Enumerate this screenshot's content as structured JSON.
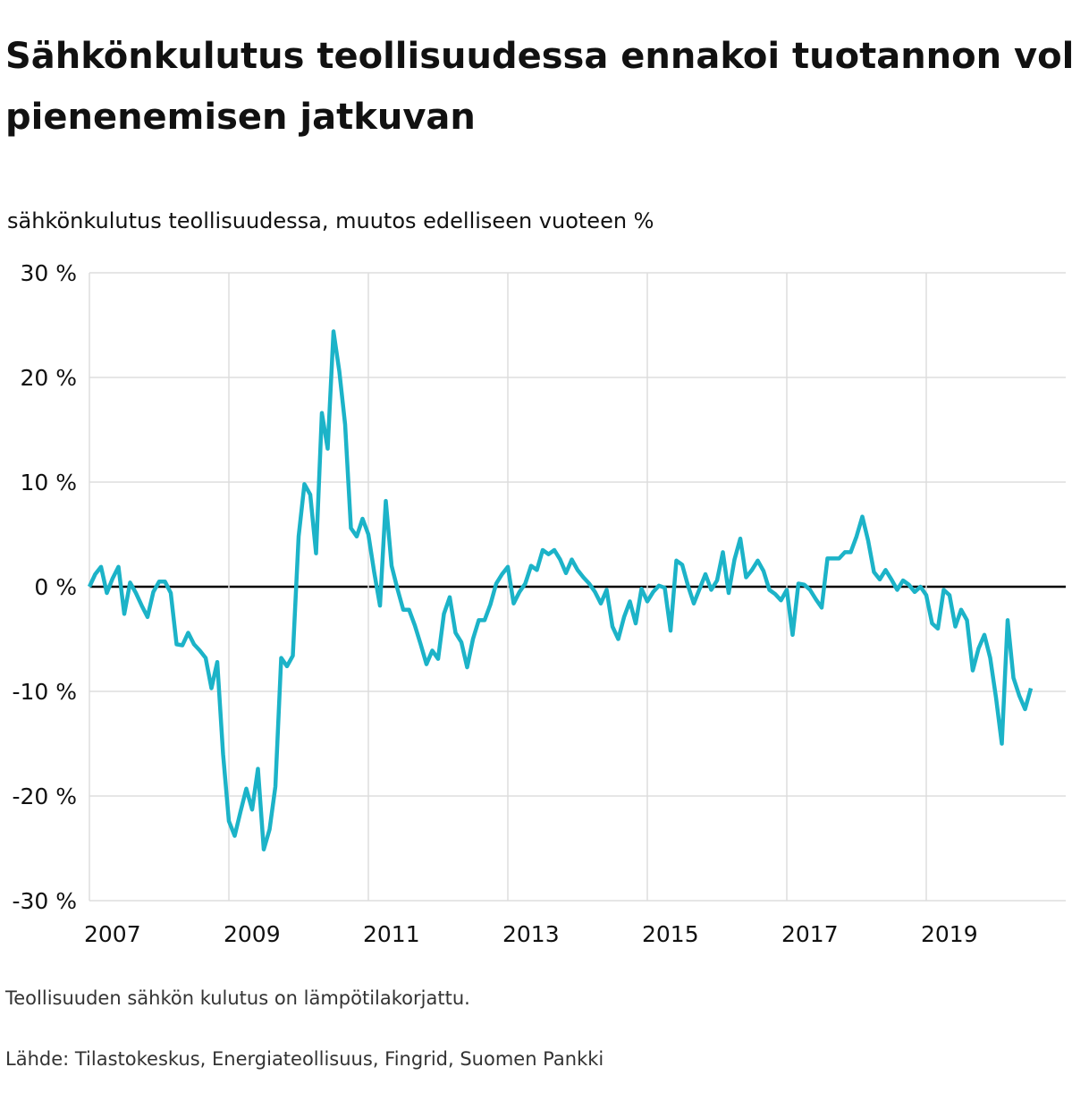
{
  "chart_data": {
    "type": "line",
    "title": "Sähkönkulutus teollisuudessa ennakoi tuotannon volyymin pienenemisen jatkuvan",
    "subtitle": "sähkönkulutus teollisuudessa, muutos edelliseen vuoteen %",
    "notes": [
      "Teollisuuden sähkön kulutus on lämpötilakorjattu.",
      "Lähde: Tilastokeskus, Energiateollisuus, Fingrid, Suomen Pankki"
    ],
    "color": "#1cb3c8",
    "x": [
      2007,
      2007.083,
      2007.167,
      2007.25,
      2007.333,
      2007.417,
      2007.5,
      2007.583,
      2007.667,
      2007.75,
      2007.833,
      2007.917,
      2008,
      2008.083,
      2008.167,
      2008.25,
      2008.333,
      2008.417,
      2008.5,
      2008.583,
      2008.667,
      2008.75,
      2008.833,
      2008.917,
      2009,
      2009.083,
      2009.167,
      2009.25,
      2009.333,
      2009.417,
      2009.5,
      2009.583,
      2009.667,
      2009.75,
      2009.833,
      2009.917,
      2010,
      2010.083,
      2010.167,
      2010.25,
      2010.333,
      2010.417,
      2010.5,
      2010.583,
      2010.667,
      2010.75,
      2010.833,
      2010.917,
      2011,
      2011.083,
      2011.167,
      2011.25,
      2011.333,
      2011.417,
      2011.5,
      2011.583,
      2011.667,
      2011.75,
      2011.833,
      2011.917,
      2012,
      2012.083,
      2012.167,
      2012.25,
      2012.333,
      2012.417,
      2012.5,
      2012.583,
      2012.667,
      2012.75,
      2012.833,
      2012.917,
      2013,
      2013.083,
      2013.167,
      2013.25,
      2013.333,
      2013.417,
      2013.5,
      2013.583,
      2013.667,
      2013.75,
      2013.833,
      2013.917,
      2014,
      2014.083,
      2014.167,
      2014.25,
      2014.333,
      2014.417,
      2014.5,
      2014.583,
      2014.667,
      2014.75,
      2014.833,
      2014.917,
      2015,
      2015.083,
      2015.167,
      2015.25,
      2015.333,
      2015.417,
      2015.5,
      2015.583,
      2015.667,
      2015.75,
      2015.833,
      2015.917,
      2016,
      2016.083,
      2016.167,
      2016.25,
      2016.333,
      2016.417,
      2016.5,
      2016.583,
      2016.667,
      2016.75,
      2016.833,
      2016.917,
      2017,
      2017.083,
      2017.167,
      2017.25,
      2017.333,
      2017.417,
      2017.5,
      2017.583,
      2017.667,
      2017.75,
      2017.833,
      2017.917,
      2018,
      2018.083,
      2018.167,
      2018.25,
      2018.333,
      2018.417,
      2018.5,
      2018.583,
      2018.667,
      2018.75,
      2018.833,
      2018.917,
      2019,
      2019.083,
      2019.167,
      2019.25,
      2019.333,
      2019.417,
      2019.5,
      2019.583,
      2019.667,
      2019.75,
      2019.833,
      2019.917,
      2020,
      2020.083,
      2020.167,
      2020.25,
      2020.333,
      2020.417,
      2020.5
    ],
    "values": [
      0,
      1.2,
      1.9,
      -0.6,
      0.8,
      1.9,
      -2.6,
      0.4,
      -0.6,
      -1.8,
      -2.9,
      -0.5,
      0.5,
      0.5,
      -0.6,
      -5.5,
      -5.6,
      -4.4,
      -5.5,
      -6.1,
      -6.8,
      -9.7,
      -7.2,
      -16,
      -22.4,
      -23.8,
      -21.5,
      -19.3,
      -21.3,
      -17.4,
      -25.1,
      -23.2,
      -19.1,
      -6.8,
      -7.6,
      -6.6,
      4.8,
      9.8,
      8.8,
      3.2,
      16.6,
      13.2,
      24.4,
      20.6,
      15.5,
      5.6,
      4.8,
      6.5,
      5,
      1.4,
      -1.8,
      8.2,
      2,
      -0.2,
      -2.2,
      -2.2,
      -3.7,
      -5.5,
      -7.4,
      -6.1,
      -6.9,
      -2.6,
      -1,
      -4.4,
      -5.3,
      -7.7,
      -5,
      -3.2,
      -3.2,
      -1.7,
      0.3,
      1.2,
      1.9,
      -1.6,
      -0.5,
      0.3,
      2,
      1.6,
      3.5,
      3.1,
      3.5,
      2.6,
      1.3,
      2.6,
      1.6,
      0.9,
      0.3,
      -0.5,
      -1.6,
      -0.3,
      -3.8,
      -5,
      -2.9,
      -1.4,
      -3.5,
      -0.2,
      -1.4,
      -0.5,
      0.1,
      -0.1,
      -4.2,
      2.5,
      2.1,
      0.1,
      -1.6,
      -0.2,
      1.2,
      -0.3,
      0.6,
      3.3,
      -0.6,
      2.6,
      4.6,
      0.9,
      1.6,
      2.5,
      1.5,
      -0.3,
      -0.7,
      -1.3,
      -0.3,
      -4.6,
      0.3,
      0.2,
      -0.3,
      -1.2,
      -2,
      2.7,
      2.7,
      2.7,
      3.3,
      3.3,
      4.8,
      6.7,
      4.4,
      1.4,
      0.7,
      1.6,
      0.7,
      -0.3,
      0.6,
      0.2,
      -0.5,
      0,
      -0.8,
      -3.5,
      -4,
      -0.3,
      -0.8,
      -3.8,
      -2.2,
      -3.2,
      -8,
      -5.9,
      -4.6,
      -6.8,
      -10.6,
      -15,
      -3.2,
      -8.7,
      -10.4,
      -11.7,
      -9.7
    ],
    "xlim": [
      2007,
      2021
    ],
    "xticks": [
      2007,
      2009,
      2011,
      2013,
      2015,
      2017,
      2019
    ],
    "ylim": [
      -30,
      30
    ],
    "yticks": [
      {
        "value": -30,
        "label": "-30 %"
      },
      {
        "value": -20,
        "label": "-20 %"
      },
      {
        "value": -10,
        "label": "-10 %"
      },
      {
        "value": 0,
        "label": "0 %"
      },
      {
        "value": 10,
        "label": "10 %"
      },
      {
        "value": 20,
        "label": "20 %"
      },
      {
        "value": 30,
        "label": "30 %"
      }
    ],
    "grid": true
  }
}
